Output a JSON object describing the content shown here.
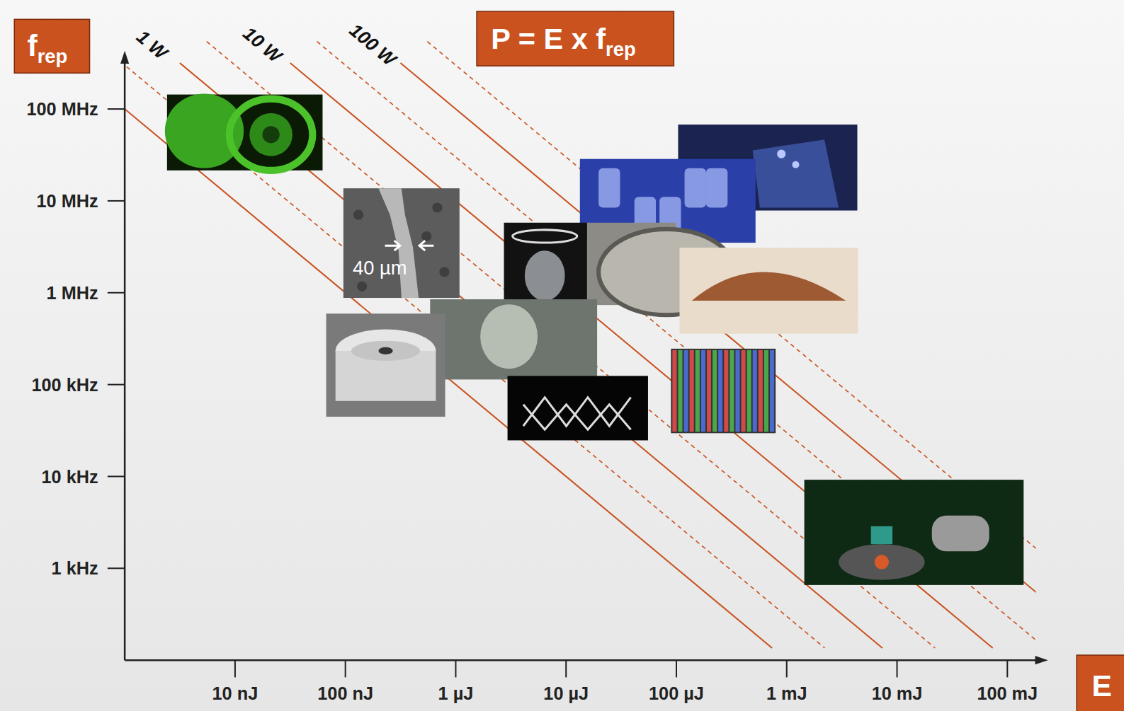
{
  "chart_data": {
    "type": "line",
    "title": {
      "main": "P = E x f",
      "sub": "rep"
    },
    "x_label": "E",
    "y_label": {
      "main": "f",
      "sub": "rep"
    },
    "log": true,
    "color": "#c9521f",
    "xlim": [
      1e-09,
      0.22
    ],
    "ylim": [
      100,
      400000000
    ],
    "xticks": [
      {
        "value": 1e-08,
        "label": "10 nJ"
      },
      {
        "value": 1e-07,
        "label": "100 nJ"
      },
      {
        "value": 1e-06,
        "label": "1 µJ"
      },
      {
        "value": 1e-05,
        "label": "10 µJ"
      },
      {
        "value": 0.0001,
        "label": "100 µJ"
      },
      {
        "value": 0.001,
        "label": "1 mJ"
      },
      {
        "value": 0.01,
        "label": "10 mJ"
      },
      {
        "value": 0.1,
        "label": "100 mJ"
      }
    ],
    "yticks": [
      {
        "value": 1000,
        "label": "1 kHz"
      },
      {
        "value": 10000,
        "label": "10 kHz"
      },
      {
        "value": 100000,
        "label": "100 kHz"
      },
      {
        "value": 1000000,
        "label": "1 MHz"
      },
      {
        "value": 10000000,
        "label": "10 MHz"
      },
      {
        "value": 100000000,
        "label": "100 MHz"
      }
    ],
    "power_lines": [
      {
        "value": 0.1,
        "line_style": "solid"
      },
      {
        "value": 0.3,
        "line_style": "dashed"
      },
      {
        "value": 1,
        "line_style": "solid",
        "label": "1 W"
      },
      {
        "value": 3,
        "line_style": "dashed"
      },
      {
        "value": 10,
        "line_style": "solid",
        "label": "10 W"
      },
      {
        "value": 30,
        "line_style": "dashed"
      },
      {
        "value": 100,
        "line_style": "solid",
        "label": "100 W"
      },
      {
        "value": 300,
        "line_style": "dashed"
      }
    ],
    "annotations": [
      "40 µm"
    ]
  }
}
